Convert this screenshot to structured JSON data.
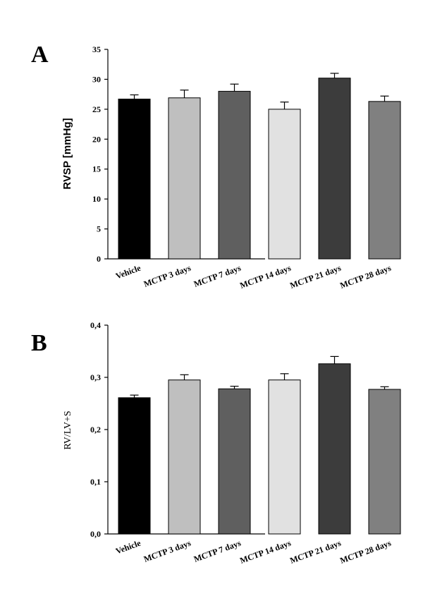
{
  "chart_data": [
    {
      "panel": "A",
      "type": "bar",
      "ylabel": "RVSP [mmHg]",
      "ylim": [
        0,
        35
      ],
      "yticks": [
        0,
        5,
        10,
        15,
        20,
        25,
        30,
        35
      ],
      "ytick_labels": [
        "0",
        "5",
        "10",
        "15",
        "20",
        "25",
        "30",
        "35"
      ],
      "categories": [
        "Vehicle",
        "MCTP 3 days",
        "MCTP 7 days",
        "MCTP 14 days",
        "MCTP 21 days",
        "MCTP 28 days"
      ],
      "values": [
        26.7,
        26.9,
        28.0,
        25.0,
        30.2,
        26.3
      ],
      "errors": [
        0.7,
        1.3,
        1.2,
        1.2,
        0.8,
        0.9
      ],
      "colors": [
        "#000000",
        "#bfbfbf",
        "#5f5f5f",
        "#e1e1e1",
        "#3c3c3c",
        "#808080"
      ]
    },
    {
      "panel": "B",
      "type": "bar",
      "ylabel": "RV/LV+S",
      "ylim": [
        0,
        0.4
      ],
      "yticks": [
        0,
        0.1,
        0.2,
        0.3,
        0.4
      ],
      "ytick_labels": [
        "0,0",
        "0,1",
        "0,2",
        "0,3",
        "0,4"
      ],
      "categories": [
        "Vehicle",
        "MCTP 3 days",
        "MCTP 7 days",
        "MCTP 14 days",
        "MCTP 21 days",
        "MCTP 28 days"
      ],
      "values": [
        0.261,
        0.295,
        0.278,
        0.295,
        0.326,
        0.277
      ],
      "errors": [
        0.005,
        0.01,
        0.005,
        0.012,
        0.014,
        0.005
      ],
      "colors": [
        "#000000",
        "#bfbfbf",
        "#5f5f5f",
        "#e1e1e1",
        "#3c3c3c",
        "#808080"
      ]
    }
  ]
}
